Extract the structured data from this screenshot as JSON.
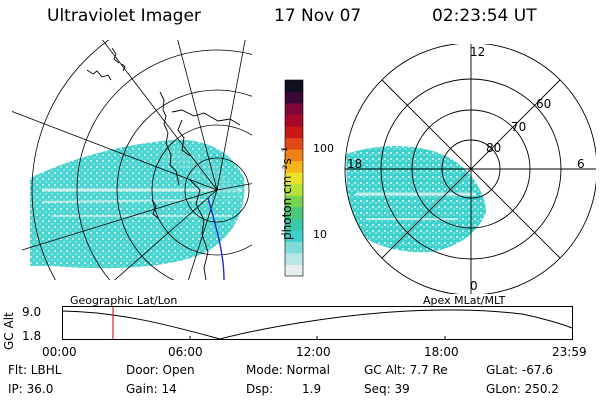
{
  "header": {
    "instrument": "Ultraviolet Imager",
    "date": "17 Nov 07",
    "time": "02:23:54 UT"
  },
  "colorbar": {
    "unit": "photon cm⁻²s⁻¹",
    "tick_100": "100",
    "tick_10": "10",
    "colors": [
      "#e6eef0",
      "#b9e6e6",
      "#7fdcd8",
      "#3ecfcc",
      "#38c9a8",
      "#48c878",
      "#78d450",
      "#b6e23c",
      "#e8e22a",
      "#f5b61c",
      "#f08018",
      "#e04818",
      "#c81818",
      "#a80828",
      "#800838",
      "#3a0838",
      "#101020"
    ]
  },
  "map_left": {
    "caption": "Geographic Lat/Lon"
  },
  "map_right": {
    "caption": "Apex MLat/MLT",
    "mlt_12": "12",
    "mlt_18": "18",
    "mlt_6": "6",
    "mlt_0": "0",
    "lat_60": "60",
    "lat_70": "70",
    "lat_80": "80"
  },
  "altitude_plot": {
    "ylabel": "GC Alt",
    "y_max": "9.0",
    "y_min": "1.8",
    "x_ticks": [
      "00:00",
      "06:00",
      "12:00",
      "18:00",
      "23:59"
    ],
    "current_time_marker_hours": 2.4
  },
  "info": {
    "flt": "Flt: LBHL",
    "ip": "IP: 36.0",
    "door": "Door: Open",
    "gain": "Gain: 14",
    "mode": "Mode: Normal",
    "dsp_label": "Dsp:",
    "dsp_value": "1.9",
    "gcalt": "GC Alt: 7.7 Re",
    "seq": "Seq: 39",
    "glat": "GLat: -67.6",
    "glon": "GLon: 250.2"
  }
}
